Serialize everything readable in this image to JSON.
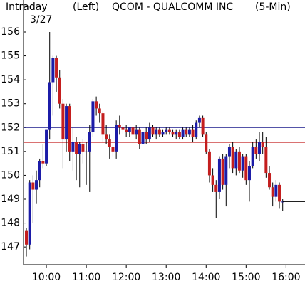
{
  "chart_data": {
    "type": "candlestick",
    "title": "QCOM - QUALCOMM INC",
    "period_label": "Intraday",
    "date": "3/27",
    "axis_side": "(Left)",
    "interval": "(5-Min)",
    "up_color": "#1c1ca8",
    "down_color": "#c41e1e",
    "open": [
      147.7,
      147.1,
      149.7,
      149.4,
      149.8,
      150.6,
      150.5,
      151.9,
      153.9,
      154.9,
      154.1,
      153.0,
      151.5,
      152.9,
      151.0,
      151.4,
      150.9,
      151.3,
      151.0,
      151.0,
      151.8,
      153.1,
      152.8,
      152.6,
      151.7,
      151.5,
      151.2,
      151.0,
      152.1,
      152.0,
      151.9,
      151.8,
      152.0,
      151.7,
      151.9,
      151.3,
      151.8,
      151.5,
      152.0,
      151.7,
      151.9,
      151.7,
      151.8,
      151.9,
      151.8,
      151.7,
      151.8,
      151.6,
      151.9,
      151.7,
      151.9,
      151.6,
      152.2,
      152.4,
      151.7,
      151.0,
      150.0,
      149.6,
      149.3,
      150.7,
      149.6,
      150.8,
      151.2,
      150.3,
      151.0,
      150.2,
      150.8,
      149.8,
      150.4,
      151.2,
      150.9,
      151.4,
      151.2,
      150.1,
      149.5,
      149.1,
      149.6,
      148.9
    ],
    "high": [
      147.8,
      149.8,
      150.0,
      150.2,
      150.7,
      151.3,
      151.9,
      156.0,
      155.0,
      155.0,
      154.4,
      153.2,
      153.0,
      153.0,
      152.0,
      151.6,
      151.4,
      151.5,
      151.4,
      152.1,
      153.2,
      153.3,
      153.0,
      152.7,
      152.1,
      151.7,
      151.3,
      152.3,
      152.5,
      152.2,
      152.1,
      152.0,
      152.1,
      152.1,
      152.0,
      151.9,
      152.0,
      152.2,
      152.1,
      152.0,
      152.0,
      151.9,
      152.0,
      152.0,
      151.9,
      151.9,
      151.9,
      152.0,
      152.0,
      152.0,
      152.1,
      152.3,
      152.5,
      152.5,
      151.8,
      151.1,
      150.3,
      149.8,
      150.8,
      150.9,
      150.9,
      151.3,
      151.4,
      151.1,
      151.2,
      150.9,
      150.9,
      150.6,
      151.4,
      151.5,
      151.8,
      151.8,
      151.6,
      150.4,
      149.7,
      149.8,
      149.7,
      149.0
    ],
    "low": [
      146.6,
      146.9,
      148.0,
      148.8,
      149.5,
      150.3,
      150.4,
      151.5,
      152.5,
      153.5,
      152.8,
      150.3,
      151.0,
      150.6,
      150.2,
      149.8,
      149.5,
      150.5,
      149.6,
      149.3,
      151.6,
      152.5,
      152.2,
      151.4,
      151.3,
      150.7,
      150.8,
      150.7,
      151.7,
      151.7,
      151.6,
      151.6,
      151.6,
      151.5,
      151.1,
      151.1,
      151.3,
      151.4,
      151.6,
      151.5,
      151.6,
      151.6,
      151.7,
      151.7,
      151.6,
      151.5,
      151.5,
      151.5,
      151.6,
      151.6,
      151.4,
      151.5,
      152.0,
      151.6,
      150.9,
      149.7,
      149.3,
      148.2,
      149.0,
      149.4,
      148.7,
      150.3,
      150.1,
      150.0,
      150.1,
      149.9,
      149.6,
      148.9,
      150.3,
      150.7,
      150.6,
      150.9,
      149.9,
      149.4,
      148.7,
      148.9,
      148.6,
      148.5
    ],
    "close": [
      147.1,
      149.7,
      149.4,
      149.8,
      150.6,
      150.5,
      151.9,
      153.9,
      154.9,
      154.1,
      153.0,
      151.5,
      152.9,
      151.0,
      151.4,
      150.9,
      151.3,
      151.0,
      151.0,
      151.8,
      153.1,
      152.8,
      152.6,
      151.7,
      151.5,
      151.2,
      151.0,
      152.1,
      152.0,
      151.9,
      151.8,
      152.0,
      151.7,
      151.9,
      151.3,
      151.8,
      151.5,
      152.0,
      151.7,
      151.9,
      151.7,
      151.8,
      151.9,
      151.8,
      151.7,
      151.8,
      151.6,
      151.9,
      151.7,
      151.9,
      151.6,
      152.2,
      152.4,
      151.7,
      151.0,
      150.0,
      149.6,
      149.3,
      150.7,
      149.6,
      150.8,
      151.2,
      150.3,
      151.0,
      150.2,
      150.8,
      149.8,
      150.4,
      151.2,
      150.9,
      151.4,
      151.2,
      150.1,
      149.5,
      149.1,
      149.6,
      148.9,
      148.9
    ],
    "reference_lines": [
      {
        "value": 152.0,
        "color": "#1c1c8c"
      },
      {
        "value": 151.38,
        "color": "#c41e1e"
      }
    ],
    "xlim": [
      -0.86,
      83.7
    ],
    "xticks": [
      {
        "value": 6,
        "label": "10:00"
      },
      {
        "value": 18,
        "label": "11:00"
      },
      {
        "value": 30,
        "label": "12:00"
      },
      {
        "value": 42,
        "label": "13:00"
      },
      {
        "value": 54,
        "label": "14:00"
      },
      {
        "value": 66,
        "label": "15:00"
      },
      {
        "value": 78,
        "label": "16:00"
      }
    ],
    "ylim": [
      146.26,
      157.34
    ],
    "yticks": [
      147,
      148,
      149,
      150,
      151,
      152,
      153,
      154,
      155,
      156
    ]
  }
}
